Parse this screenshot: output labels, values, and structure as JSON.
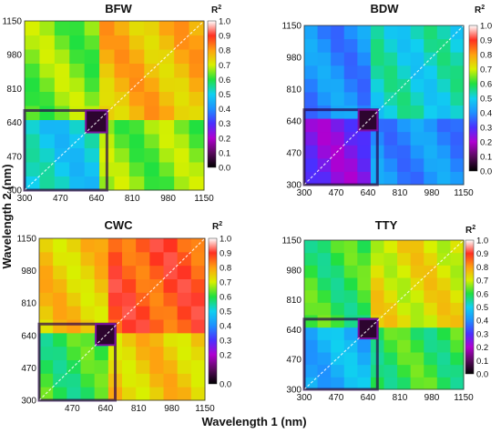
{
  "figure": {
    "shared_ylabel": "Wavelength 2 (nm)",
    "shared_xlabel": "Wavelength 1 (nm)"
  },
  "colorbar": {
    "label": "R",
    "label_sup": "2",
    "ticks": [
      "1.0",
      "0.9",
      "0.8",
      "0.7",
      "0.6",
      "0.5",
      "0.4",
      "0.3",
      "0.2",
      "0.1",
      "0.0"
    ],
    "ticks_short": [
      "1.0",
      "0.9",
      "0.8",
      "0.7",
      "0.6",
      "0.5",
      "0.4",
      "0.3",
      "0.2",
      "0.0"
    ],
    "ticks_short_values": [
      1.0,
      0.9,
      0.8,
      0.7,
      0.6,
      0.5,
      0.4,
      0.3,
      0.2,
      0.0
    ]
  },
  "chart_data": [
    {
      "type": "heatmap",
      "title": "BFW",
      "xticks": [
        "300",
        "470",
        "640",
        "810",
        "980",
        "1150"
      ],
      "yticks": [
        "1150",
        "980",
        "810",
        "640",
        "470",
        "300"
      ],
      "xlim": [
        300,
        1150
      ],
      "ylim": [
        300,
        1150
      ],
      "zlim": [
        0,
        1
      ],
      "dominant_r2": 0.65
    },
    {
      "type": "heatmap",
      "title": "BDW",
      "xticks": [
        "300",
        "470",
        "640",
        "810",
        "980",
        "1150"
      ],
      "yticks": [
        "1150",
        "980",
        "810",
        "640",
        "470",
        "300"
      ],
      "xlim": [
        300,
        1150
      ],
      "ylim": [
        300,
        1150
      ],
      "zlim": [
        0,
        1
      ],
      "dominant_r2": 0.4
    },
    {
      "type": "heatmap",
      "title": "CWC",
      "xticks": [
        "470",
        "640",
        "810",
        "980",
        "1150"
      ],
      "yticks": [
        "1150",
        "980",
        "810",
        "640",
        "470",
        "300"
      ],
      "xlim": [
        300,
        1150
      ],
      "ylim": [
        300,
        1150
      ],
      "zlim": [
        0,
        1
      ],
      "dominant_r2": 0.75
    },
    {
      "type": "heatmap",
      "title": "TTY",
      "xticks": [
        "300",
        "470",
        "640",
        "810",
        "980",
        "1150"
      ],
      "yticks": [
        "1150",
        "980",
        "810",
        "640",
        "470",
        "300"
      ],
      "xlim": [
        300,
        1150
      ],
      "ylim": [
        300,
        1150
      ],
      "zlim": [
        0,
        1
      ],
      "dominant_r2": 0.6
    }
  ]
}
